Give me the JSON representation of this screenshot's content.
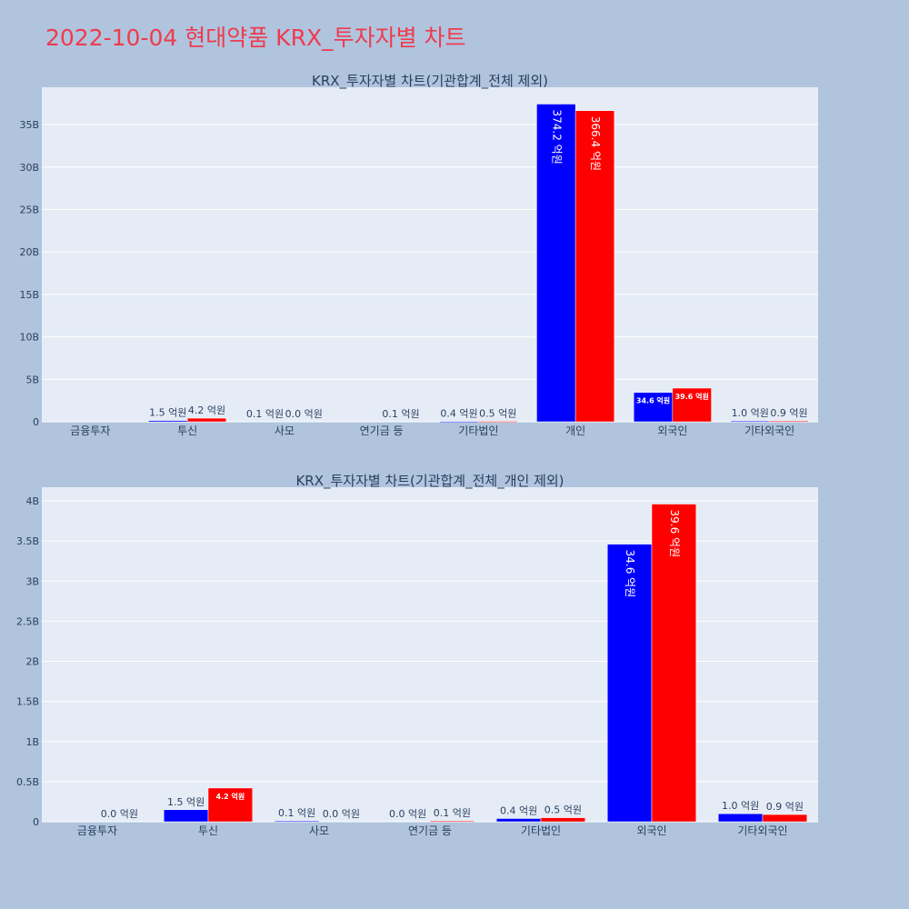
{
  "title": "2022-10-04 현대약품 KRX_투자자별 차트",
  "colors": {
    "background": "#b0c4de",
    "plot_bg": "#e5ecf6",
    "grid": "#ffffff",
    "title": "#ef3b4e",
    "text": "#2a3f5f",
    "series_a": "#0000ff",
    "series_b": "#ff0000"
  },
  "chart_data": [
    {
      "type": "bar",
      "title": "KRX_투자자별 차트(기관합계_전체 제외)",
      "categories": [
        "금융투자",
        "투신",
        "사모",
        "연기금 등",
        "기타법인",
        "개인",
        "외국인",
        "기타외국인"
      ],
      "series": [
        {
          "color": "#0000ff",
          "values": [
            0,
            150000000,
            10000000,
            0,
            40000000,
            37420000000,
            3460000000,
            100000000
          ],
          "labels": [
            "",
            "1.5 억원",
            "0.1 억원",
            "",
            "0.4 억원",
            "374.2 억원",
            "34.6 억원",
            "1.0 억원"
          ]
        },
        {
          "color": "#ff0000",
          "values": [
            0,
            420000000,
            0,
            10000000,
            50000000,
            36640000000,
            3960000000,
            90000000
          ],
          "labels": [
            "",
            "4.2 억원",
            "0.0 억원",
            "0.1 억원",
            "0.5 억원",
            "366.4 억원",
            "39.6 억원",
            "0.9 억원"
          ]
        }
      ],
      "yticks": [
        {
          "value": 0,
          "label": "0"
        },
        {
          "value": 5000000000,
          "label": "5B"
        },
        {
          "value": 10000000000,
          "label": "10B"
        },
        {
          "value": 15000000000,
          "label": "15B"
        },
        {
          "value": 20000000000,
          "label": "20B"
        },
        {
          "value": 25000000000,
          "label": "25B"
        },
        {
          "value": 30000000000,
          "label": "30B"
        },
        {
          "value": 35000000000,
          "label": "35B"
        }
      ],
      "ylim": [
        0,
        39400000000
      ],
      "grid": true
    },
    {
      "type": "bar",
      "title": "KRX_투자자별 차트(기관합계_전체_개인 제외)",
      "categories": [
        "금융투자",
        "투신",
        "사모",
        "연기금 등",
        "기타법인",
        "외국인",
        "기타외국인"
      ],
      "series": [
        {
          "color": "#0000ff",
          "values": [
            0,
            150000000,
            10000000,
            0,
            40000000,
            3460000000,
            100000000
          ],
          "labels": [
            "",
            "1.5 억원",
            "0.1 억원",
            "0.0 억원",
            "0.4 억원",
            "34.6 억원",
            "1.0 억원"
          ]
        },
        {
          "color": "#ff0000",
          "values": [
            0,
            420000000,
            0,
            10000000,
            50000000,
            3960000000,
            90000000
          ],
          "labels": [
            "0.0 억원",
            "4.2 억원",
            "0.0 억원",
            "0.1 억원",
            "0.5 억원",
            "39.6 억원",
            "0.9 억원"
          ]
        }
      ],
      "yticks": [
        {
          "value": 0,
          "label": "0"
        },
        {
          "value": 500000000,
          "label": "0.5B"
        },
        {
          "value": 1000000000,
          "label": "1B"
        },
        {
          "value": 1500000000,
          "label": "1.5B"
        },
        {
          "value": 2000000000,
          "label": "2B"
        },
        {
          "value": 2500000000,
          "label": "2.5B"
        },
        {
          "value": 3000000000,
          "label": "3B"
        },
        {
          "value": 3500000000,
          "label": "3.5B"
        },
        {
          "value": 4000000000,
          "label": "4B"
        }
      ],
      "ylim": [
        0,
        4170000000
      ],
      "grid": true
    }
  ]
}
